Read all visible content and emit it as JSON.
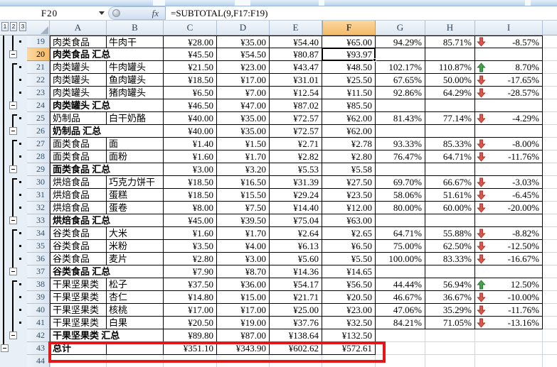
{
  "chrome": {
    "name_box": "F20",
    "fx_label": "fx",
    "formula": "=SUBTOTAL(9,F17:F19)",
    "outline_buttons": [
      "1",
      "2",
      "3"
    ]
  },
  "selection": {
    "cell": "F20",
    "column": "F",
    "row": 20
  },
  "columns": [
    "A",
    "B",
    "C",
    "D",
    "E",
    "F",
    "G",
    "H",
    "I"
  ],
  "rows": [
    {
      "n": 19,
      "type": "detail",
      "a": "肉类食品",
      "b": "牛肉干",
      "c": "¥28.00",
      "d": "¥35.00",
      "e": "¥54.40",
      "f": "¥65.00",
      "g": "94.29%",
      "h": "85.71%",
      "trend": "down",
      "i": "-8.57%"
    },
    {
      "n": 20,
      "type": "subtotal",
      "label": "肉类食品 汇总",
      "c": "¥45.50",
      "d": "¥54.50",
      "e": "¥80.87",
      "f": "¥93.97",
      "selected_cell": true
    },
    {
      "n": 21,
      "type": "detail",
      "a": "肉类罐头",
      "b": "牛肉罐头",
      "c": "¥21.50",
      "d": "¥23.00",
      "e": "¥43.47",
      "f": "¥48.50",
      "g": "102.17%",
      "h": "110.87%",
      "trend": "up",
      "i": "8.70%"
    },
    {
      "n": 22,
      "type": "detail",
      "a": "肉类罐头",
      "b": "鱼肉罐头",
      "c": "¥18.50",
      "d": "¥17.00",
      "e": "¥31.01",
      "f": "¥25.50",
      "g": "67.65%",
      "h": "50.00%",
      "trend": "down",
      "i": "-17.65%"
    },
    {
      "n": 23,
      "type": "detail",
      "a": "肉类罐头",
      "b": "猪肉罐头",
      "c": "¥6.50",
      "d": "¥7.00",
      "e": "¥12.54",
      "f": "¥11.50",
      "g": "92.86%",
      "h": "64.29%",
      "trend": "down",
      "i": "-28.57%"
    },
    {
      "n": 24,
      "type": "subtotal",
      "label": "肉类罐头 汇总",
      "c": "¥46.50",
      "d": "¥47.00",
      "e": "¥87.02",
      "f": "¥85.50"
    },
    {
      "n": 25,
      "type": "detail",
      "a": "奶制品",
      "b": "白干奶酪",
      "c": "¥40.00",
      "d": "¥35.00",
      "e": "¥72.57",
      "f": "¥62.00",
      "g": "81.43%",
      "h": "77.14%",
      "trend": "down",
      "i": "-4.29%"
    },
    {
      "n": 26,
      "type": "subtotal",
      "label": "奶制品 汇总",
      "c": "¥40.00",
      "d": "¥35.00",
      "e": "¥72.57",
      "f": "¥62.00"
    },
    {
      "n": 27,
      "type": "detail",
      "a": "面类食品",
      "b": "面",
      "c": "¥1.40",
      "d": "¥1.50",
      "e": "¥2.71",
      "f": "¥2.78",
      "g": "93.33%",
      "h": "85.33%",
      "trend": "down",
      "i": "-8.00%"
    },
    {
      "n": 28,
      "type": "detail",
      "a": "面类食品",
      "b": "面粉",
      "c": "¥1.60",
      "d": "¥1.70",
      "e": "¥2.82",
      "f": "¥2.80",
      "g": "76.47%",
      "h": "64.71%",
      "trend": "down",
      "i": "-11.76%"
    },
    {
      "n": 29,
      "type": "subtotal",
      "label": "面类食品 汇总",
      "c": "¥3.00",
      "d": "¥3.20",
      "e": "¥5.53",
      "f": "¥5.58"
    },
    {
      "n": 30,
      "type": "detail",
      "a": "烘焙食品",
      "b": "巧克力饼干",
      "c": "¥18.50",
      "d": "¥16.50",
      "e": "¥31.39",
      "f": "¥27.50",
      "g": "69.70%",
      "h": "66.67%",
      "trend": "down",
      "i": "-3.03%"
    },
    {
      "n": 31,
      "type": "detail",
      "a": "烘焙食品",
      "b": "蛋糕",
      "c": "¥18.50",
      "d": "¥15.50",
      "e": "¥29.24",
      "f": "¥23.50",
      "g": "58.06%",
      "h": "51.61%",
      "trend": "down",
      "i": "-6.45%"
    },
    {
      "n": 32,
      "type": "detail",
      "a": "烘焙食品",
      "b": "蛋卷",
      "c": "¥8.00",
      "d": "¥7.50",
      "e": "¥14.40",
      "f": "¥12.00",
      "g": "80.00%",
      "h": "60.00%",
      "trend": "down",
      "i": "-20.00%"
    },
    {
      "n": 33,
      "type": "subtotal",
      "label": "烘焙食品 汇总",
      "c": "¥45.00",
      "d": "¥39.50",
      "e": "¥75.04",
      "f": "¥63.00"
    },
    {
      "n": 34,
      "type": "detail",
      "a": "谷类食品",
      "b": "大米",
      "c": "¥1.60",
      "d": "¥1.70",
      "e": "¥2.64",
      "f": "¥2.65",
      "g": "64.71%",
      "h": "55.88%",
      "trend": "down",
      "i": "-8.82%"
    },
    {
      "n": 35,
      "type": "detail",
      "a": "谷类食品",
      "b": "米粉",
      "c": "¥3.50",
      "d": "¥4.00",
      "e": "¥6.13",
      "f": "¥6.50",
      "g": "75.00%",
      "h": "62.50%",
      "trend": "down",
      "i": "-12.50%"
    },
    {
      "n": 36,
      "type": "detail",
      "a": "谷类食品",
      "b": "麦片",
      "c": "¥2.80",
      "d": "¥3.00",
      "e": "¥5.60",
      "f": "¥5.50",
      "g": "100.00%",
      "h": "83.33%",
      "trend": "down",
      "i": "-16.67%"
    },
    {
      "n": 37,
      "type": "subtotal",
      "label": "谷类食品 汇总",
      "c": "¥7.90",
      "d": "¥8.70",
      "e": "¥14.36",
      "f": "¥14.65"
    },
    {
      "n": 38,
      "type": "detail",
      "a": "干果坚果类",
      "b": "松子",
      "c": "¥37.50",
      "d": "¥36.00",
      "e": "¥54.17",
      "f": "¥56.50",
      "g": "44.44%",
      "h": "56.94%",
      "trend": "up",
      "i": "12.50%"
    },
    {
      "n": 39,
      "type": "detail",
      "a": "干果坚果类",
      "b": "杏仁",
      "c": "¥14.80",
      "d": "¥15.00",
      "e": "¥21.71",
      "f": "¥20.50",
      "g": "46.67%",
      "h": "36.67%",
      "trend": "down",
      "i": "-10.00%"
    },
    {
      "n": 40,
      "type": "detail",
      "a": "干果坚果类",
      "b": "核桃",
      "c": "¥17.00",
      "d": "¥17.00",
      "e": "¥25.00",
      "f": "¥23.00",
      "g": "47.06%",
      "h": "35.29%",
      "trend": "down",
      "i": "-11.76%"
    },
    {
      "n": 41,
      "type": "detail",
      "a": "干果坚果类",
      "b": "白果",
      "c": "¥20.50",
      "d": "¥19.00",
      "e": "¥37.76",
      "f": "¥32.50",
      "g": "84.21%",
      "h": "71.05%",
      "trend": "down",
      "i": "-13.16%"
    },
    {
      "n": 42,
      "type": "subtotal",
      "label": "干果坚果类 汇总",
      "c": "¥89.80",
      "d": "¥87.00",
      "e": "¥138.64",
      "f": "¥132.50",
      "plain_right": true
    },
    {
      "n": 43,
      "type": "grand",
      "a": "总计",
      "b": "",
      "c": "¥351.10",
      "d": "¥343.90",
      "e": "¥602.62",
      "f": "¥572.61"
    },
    {
      "n": 44,
      "type": "empty"
    }
  ],
  "annotation": {
    "kind": "red-box",
    "around": "grand-total-row",
    "color": "#e21717"
  },
  "colors": {
    "up_arrow": "#44a14e",
    "up_arrow_edge": "#2c6e34",
    "down_arrow": "#d9584e",
    "down_arrow_edge": "#9a332a",
    "header_selected": "#f8c677"
  }
}
